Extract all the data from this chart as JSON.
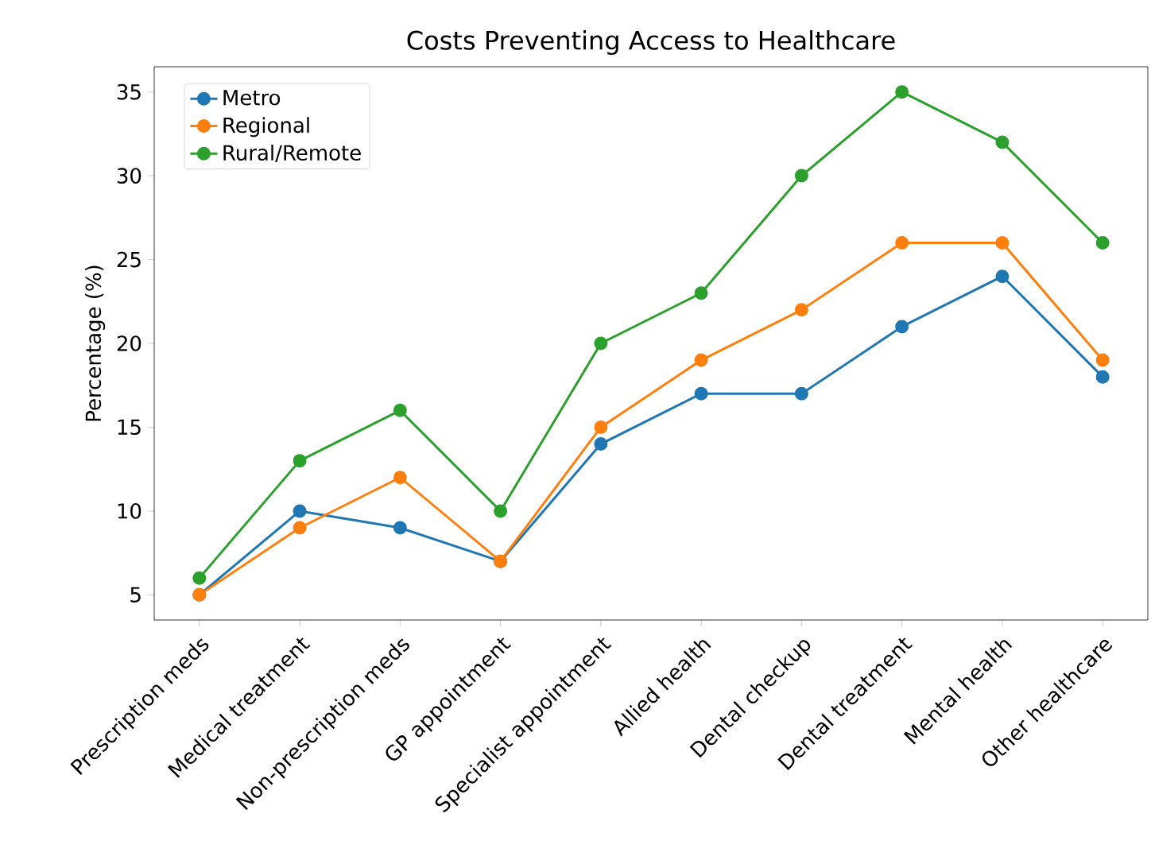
{
  "chart_data": {
    "type": "line",
    "title": "Costs Preventing Access to Healthcare",
    "ylabel": "Percentage (%)",
    "categories": [
      "Prescription meds",
      "Medical treatment",
      "Non-prescription meds",
      "GP appointment",
      "Specialist appointment",
      "Allied health",
      "Dental checkup",
      "Dental treatment",
      "Mental health",
      "Other healthcare"
    ],
    "series": [
      {
        "name": "Metro",
        "color": "#1f77b4",
        "values": [
          5,
          10,
          9,
          7,
          14,
          17,
          17,
          21,
          24,
          18
        ]
      },
      {
        "name": "Regional",
        "color": "#ff7f0e",
        "values": [
          5,
          9,
          12,
          7,
          15,
          19,
          22,
          26,
          26,
          19
        ]
      },
      {
        "name": "Rural/Remote",
        "color": "#2ca02c",
        "values": [
          6,
          13,
          16,
          10,
          20,
          23,
          30,
          35,
          32,
          26
        ]
      }
    ],
    "ylim": [
      3.5,
      36.5
    ],
    "yticks": [
      5,
      10,
      15,
      20,
      25,
      30,
      35
    ],
    "grid": false,
    "legend": "top left",
    "marker": "circle",
    "line_style": "solid"
  }
}
